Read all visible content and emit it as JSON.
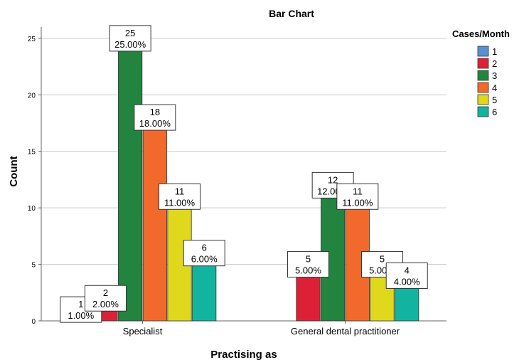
{
  "chart_data": {
    "type": "bar",
    "title": "Bar Chart",
    "xlabel": "Practising as",
    "ylabel": "Count",
    "categories": [
      "Specialist",
      "General dental practitioner"
    ],
    "legend_title": "Cases/Month",
    "legend_position": "right",
    "ylim": [
      0,
      26
    ],
    "yticks": [
      0,
      5,
      10,
      15,
      20,
      25
    ],
    "grid": true,
    "series": [
      {
        "name": "1",
        "color": "#5b8fd1",
        "values": [
          1,
          0
        ],
        "pct": [
          "1.00%",
          ""
        ]
      },
      {
        "name": "2",
        "color": "#dc2136",
        "values": [
          2,
          5
        ],
        "pct": [
          "2.00%",
          "5.00%"
        ]
      },
      {
        "name": "3",
        "color": "#22843f",
        "values": [
          25,
          12
        ],
        "pct": [
          "25.00%",
          "12.00%"
        ]
      },
      {
        "name": "4",
        "color": "#f26a2b",
        "values": [
          18,
          11
        ],
        "pct": [
          "18.00%",
          "11.00%"
        ]
      },
      {
        "name": "5",
        "color": "#e0d81d",
        "values": [
          11,
          5
        ],
        "pct": [
          "11.00%",
          "5.00%"
        ]
      },
      {
        "name": "6",
        "color": "#12b4a0",
        "values": [
          6,
          4
        ],
        "pct": [
          "6.00%",
          "4.00%"
        ]
      }
    ]
  }
}
